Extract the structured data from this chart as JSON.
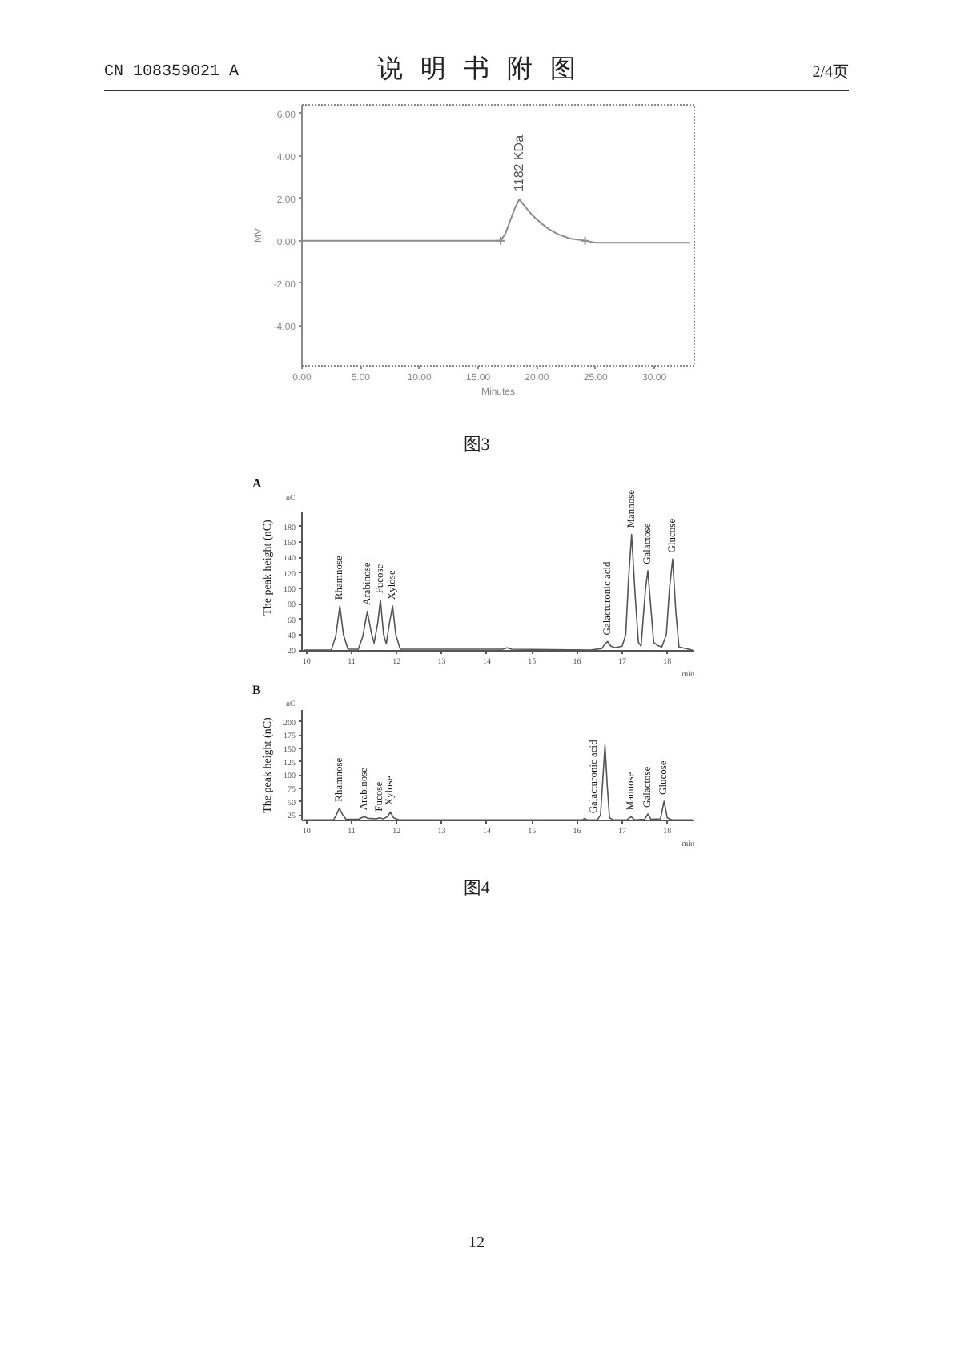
{
  "chart_data": [
    {
      "type": "other",
      "title": "说明书附图",
      "annotations": [
        "CN 108359021 A",
        "2/4页",
        "12"
      ]
    },
    {
      "type": "line",
      "xlabel": "Minutes",
      "ylabel": "MV",
      "series": [
        {
          "type": "line",
          "color": "#8c8c8c",
          "x": [
            0,
            16.9,
            17.3,
            17.7,
            18.1,
            18.5,
            19.0,
            19.6,
            20.3,
            21.0,
            21.8,
            22.8,
            24.1,
            25.0,
            33.0
          ],
          "values": [
            0,
            0,
            0.3,
            0.9,
            1.5,
            1.95,
            1.6,
            1.2,
            0.85,
            0.55,
            0.3,
            0.1,
            0,
            -0.1,
            -0.1
          ]
        },
        {
          "type": "scatter",
          "color": "#8c8c8c",
          "marker": "cross",
          "x": [
            16.9,
            24.1
          ],
          "values": [
            0,
            0
          ]
        }
      ],
      "xlim": [
        0,
        33.4
      ],
      "ylim": [
        -5.9,
        6.4
      ],
      "xticks": [
        {
          "value": 0,
          "label": "0.00"
        },
        {
          "value": 5,
          "label": "5.00"
        },
        {
          "value": 10,
          "label": "10.00"
        },
        {
          "value": 15,
          "label": "15.00"
        },
        {
          "value": 20,
          "label": "20.00"
        },
        {
          "value": 25,
          "label": "25.00"
        },
        {
          "value": 30,
          "label": "30.00"
        }
      ],
      "yticks": [
        {
          "value": -4,
          "label": "-4.00"
        },
        {
          "value": -2,
          "label": "-2.00"
        },
        {
          "value": 0,
          "label": "0.00"
        },
        {
          "value": 2,
          "label": "2.00"
        },
        {
          "value": 4,
          "label": "4.00"
        },
        {
          "value": 6,
          "label": "6.00"
        }
      ],
      "annotations": [
        {
          "text": "1182 KDa",
          "x": 18.5,
          "y": 1.95
        },
        "图3"
      ]
    },
    {
      "type": "line",
      "title": "A",
      "xlabel": "min",
      "ylabel": "The peak height (nC)",
      "color": "#555555",
      "x": [
        9.95,
        10.55,
        10.65,
        10.74,
        10.82,
        10.92,
        11.15,
        11.25,
        11.35,
        11.44,
        11.5,
        11.58,
        11.64,
        11.71,
        11.77,
        11.84,
        11.91,
        11.98,
        12.08,
        14.35,
        14.45,
        14.55,
        16.3,
        16.55,
        16.62,
        16.68,
        16.75,
        16.85,
        17.0,
        17.08,
        17.14,
        17.21,
        17.29,
        17.36,
        17.42,
        17.47,
        17.52,
        17.57,
        17.63,
        17.7,
        17.78,
        17.88,
        17.98,
        18.05,
        18.12,
        18.19,
        18.26,
        18.55
      ],
      "values": [
        20,
        20,
        38,
        77,
        40,
        21,
        21,
        38,
        70,
        42,
        29,
        55,
        85,
        40,
        28,
        55,
        77,
        40,
        21,
        21,
        23,
        21,
        20,
        22,
        28,
        31,
        25,
        23,
        25,
        40,
        110,
        170,
        90,
        30,
        25,
        64,
        100,
        123,
        80,
        30,
        26,
        24,
        40,
        100,
        138,
        70,
        24,
        20
      ],
      "xlim": [
        9.9,
        18.6
      ],
      "ylim": [
        19,
        199
      ],
      "xticks": [
        10,
        11,
        12,
        13,
        14,
        15,
        16,
        17,
        18
      ],
      "yticks": [
        20,
        40,
        60,
        80,
        100,
        120,
        140,
        160,
        180
      ],
      "annotations": [
        "nC",
        {
          "text": "Rhamnose",
          "x": 10.74,
          "y": 77
        },
        {
          "text": "Arabinose",
          "x": 11.35,
          "y": 70
        },
        {
          "text": "Fucose",
          "x": 11.64,
          "y": 85
        },
        {
          "text": "Xylose",
          "x": 11.91,
          "y": 77
        },
        {
          "text": "Galacturonic acid",
          "x": 16.68,
          "y": 31
        },
        {
          "text": "Mannose",
          "x": 17.21,
          "y": 170
        },
        {
          "text": "Galactose",
          "x": 17.57,
          "y": 123
        },
        {
          "text": "Glucose",
          "x": 18.12,
          "y": 138
        }
      ]
    },
    {
      "type": "line",
      "title": "B",
      "xlabel": "min",
      "ylabel": "The peak height (nC)",
      "color": "#555555",
      "x": [
        9.95,
        10.6,
        10.66,
        10.73,
        10.8,
        10.88,
        11.15,
        11.22,
        11.28,
        11.36,
        11.55,
        11.62,
        11.7,
        11.8,
        11.86,
        11.93,
        12.05,
        16.12,
        16.17,
        16.22,
        16.45,
        16.52,
        16.57,
        16.62,
        16.67,
        16.72,
        16.8,
        17.1,
        17.2,
        17.28,
        17.5,
        17.57,
        17.64,
        17.85,
        17.93,
        18.0,
        18.1,
        18.55
      ],
      "values": [
        16,
        16,
        25,
        38,
        26,
        17,
        17,
        20,
        22,
        19,
        18,
        20,
        18,
        22,
        31,
        20,
        16,
        16,
        19,
        16,
        16,
        25,
        90,
        156,
        80,
        20,
        16,
        16,
        22,
        16,
        17,
        27,
        17,
        18,
        51,
        20,
        16,
        16
      ],
      "xlim": [
        9.9,
        18.6
      ],
      "ylim": [
        15,
        222
      ],
      "xticks": [
        10,
        11,
        12,
        13,
        14,
        15,
        16,
        17,
        18
      ],
      "yticks": [
        25,
        50,
        75,
        100,
        125,
        150,
        175,
        200
      ],
      "annotations": [
        "nC",
        {
          "text": "Rhamnose",
          "x": 10.73,
          "y": 38
        },
        {
          "text": "Arabinose",
          "x": 11.28,
          "y": 22
        },
        {
          "text": "Fucose",
          "x": 11.62,
          "y": 20
        },
        {
          "text": "Xylose",
          "x": 11.86,
          "y": 31
        },
        {
          "text": "Galacturonic acid",
          "x": 16.38,
          "y": 16
        },
        {
          "text": "Mannose",
          "x": 17.2,
          "y": 22
        },
        {
          "text": "Galactose",
          "x": 17.57,
          "y": 27
        },
        {
          "text": "Glucose",
          "x": 17.93,
          "y": 51
        },
        "图4"
      ]
    }
  ]
}
